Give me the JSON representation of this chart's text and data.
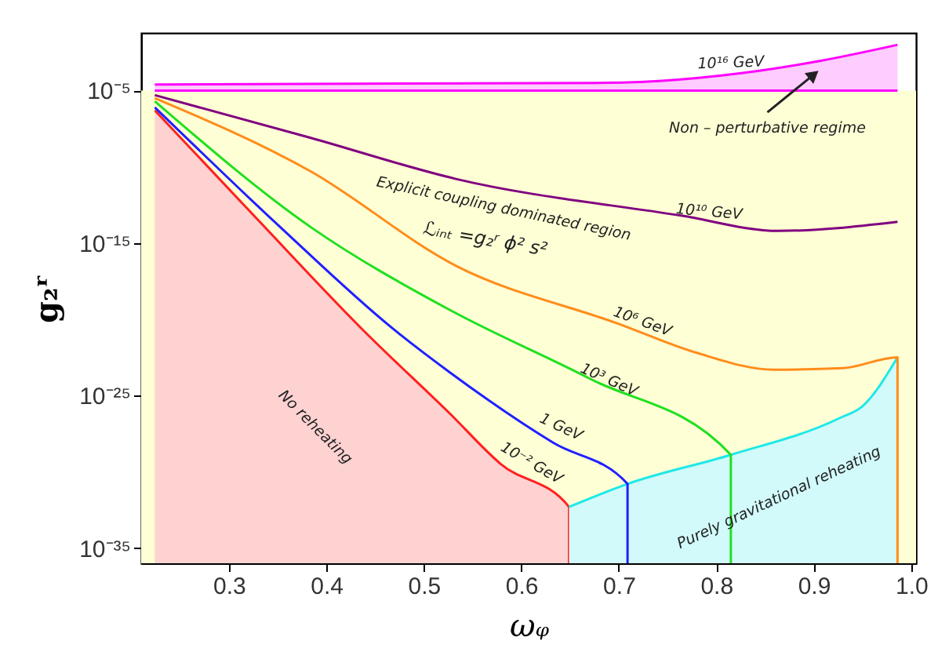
{
  "chart_data": {
    "type": "line",
    "xlabel": "ωᵩ",
    "ylabel": "g₂ʳ",
    "log": "y",
    "grid": false,
    "xlim": [
      0.21,
      1.005
    ],
    "ylim": [
      1e-36,
      0.06
    ],
    "xticks": [
      0.3,
      0.4,
      0.5,
      0.6,
      0.7,
      0.8,
      0.9,
      {
        "value": 1.0,
        "label": "1.0"
      }
    ],
    "yticks": [
      {
        "value": 1e-05,
        "label": "10⁻⁵"
      },
      {
        "value": 1e-15,
        "label": "10⁻¹⁵"
      },
      {
        "value": 1e-25,
        "label": "10⁻²⁵"
      },
      {
        "value": 1e-35,
        "label": "10⁻³⁵"
      }
    ],
    "bands": [
      {
        "axis": "y",
        "from": 1e-36,
        "to": 1e-05,
        "color": "#ffffd5"
      }
    ],
    "series": [
      {
        "type": "area",
        "color": "#ff2020",
        "x": [
          0.224,
          0.33,
          0.436,
          0.527,
          0.579,
          0.649,
          0.649
        ],
        "values": [
          5e-07,
          3.2e-14,
          2.5e-21,
          6.3e-27,
          3.2e-30,
          5e-33,
          1e-36
        ]
      },
      {
        "type": "area",
        "color": "#20e8e8",
        "x": [
          0.649,
          0.709,
          0.815,
          0.926,
          0.95,
          0.986
        ],
        "values": [
          5e-33,
          1.6e-31,
          1.3e-29,
          3.2e-27,
          2e-26,
          3.2e-23
        ]
      },
      {
        "color": "#2020ff",
        "x": [
          0.224,
          0.35,
          0.468,
          0.527,
          0.633,
          0.709,
          0.709
        ],
        "values": [
          7.9e-07,
          1.6e-14,
          2.5e-21,
          3.2e-24,
          7.9e-29,
          1.6e-31,
          1e-36
        ]
      },
      {
        "color": "#20e020",
        "x": [
          0.224,
          0.385,
          0.527,
          0.67,
          0.815,
          0.815
        ],
        "values": [
          2e-06,
          1e-14,
          4e-20,
          1.3e-24,
          1.3e-29,
          1e-36
        ]
      },
      {
        "color": "#ff8c1a",
        "x": [
          0.224,
          0.384,
          0.533,
          0.7,
          0.78,
          0.859,
          0.93,
          0.986,
          0.986
        ],
        "values": [
          3.2e-06,
          5e-11,
          3.2e-17,
          5e-21,
          6.3e-23,
          5e-24,
          6.3e-24,
          3.2e-23,
          1e-36
        ]
      },
      {
        "color": "#800080",
        "x": [
          0.224,
          0.384,
          0.533,
          0.764,
          0.864,
          0.986
        ],
        "values": [
          5e-06,
          7.9e-09,
          1.6e-11,
          6.3e-14,
          6.3e-15,
          2.5e-14
        ]
      },
      {
        "color": "#ff00ff",
        "x": [
          0.224,
          0.986
        ],
        "values": [
          1e-05,
          1e-05
        ]
      },
      {
        "type": "area",
        "color": "#ff00ff",
        "x": [
          0.224,
          0.685,
          0.844,
          0.907,
          0.986
        ],
        "values": [
          2.5e-05,
          3.2e-05,
          0.0002,
          0.00089,
          0.01
        ]
      }
    ],
    "annotations": [
      "10¹⁶ GeV",
      {
        "text": "Non – perturbative regime",
        "x": 0.9,
        "y": 0.00011
      },
      "10¹⁰ GeV",
      "Explicit coupling dominated region",
      "ℒᵢₙₜ =g₂ʳ ϕ² s²",
      "10⁶ GeV",
      "10³ GeV",
      "1 GeV",
      "10⁻² GeV",
      "No reheating",
      "Purely gravitational reheating"
    ]
  }
}
